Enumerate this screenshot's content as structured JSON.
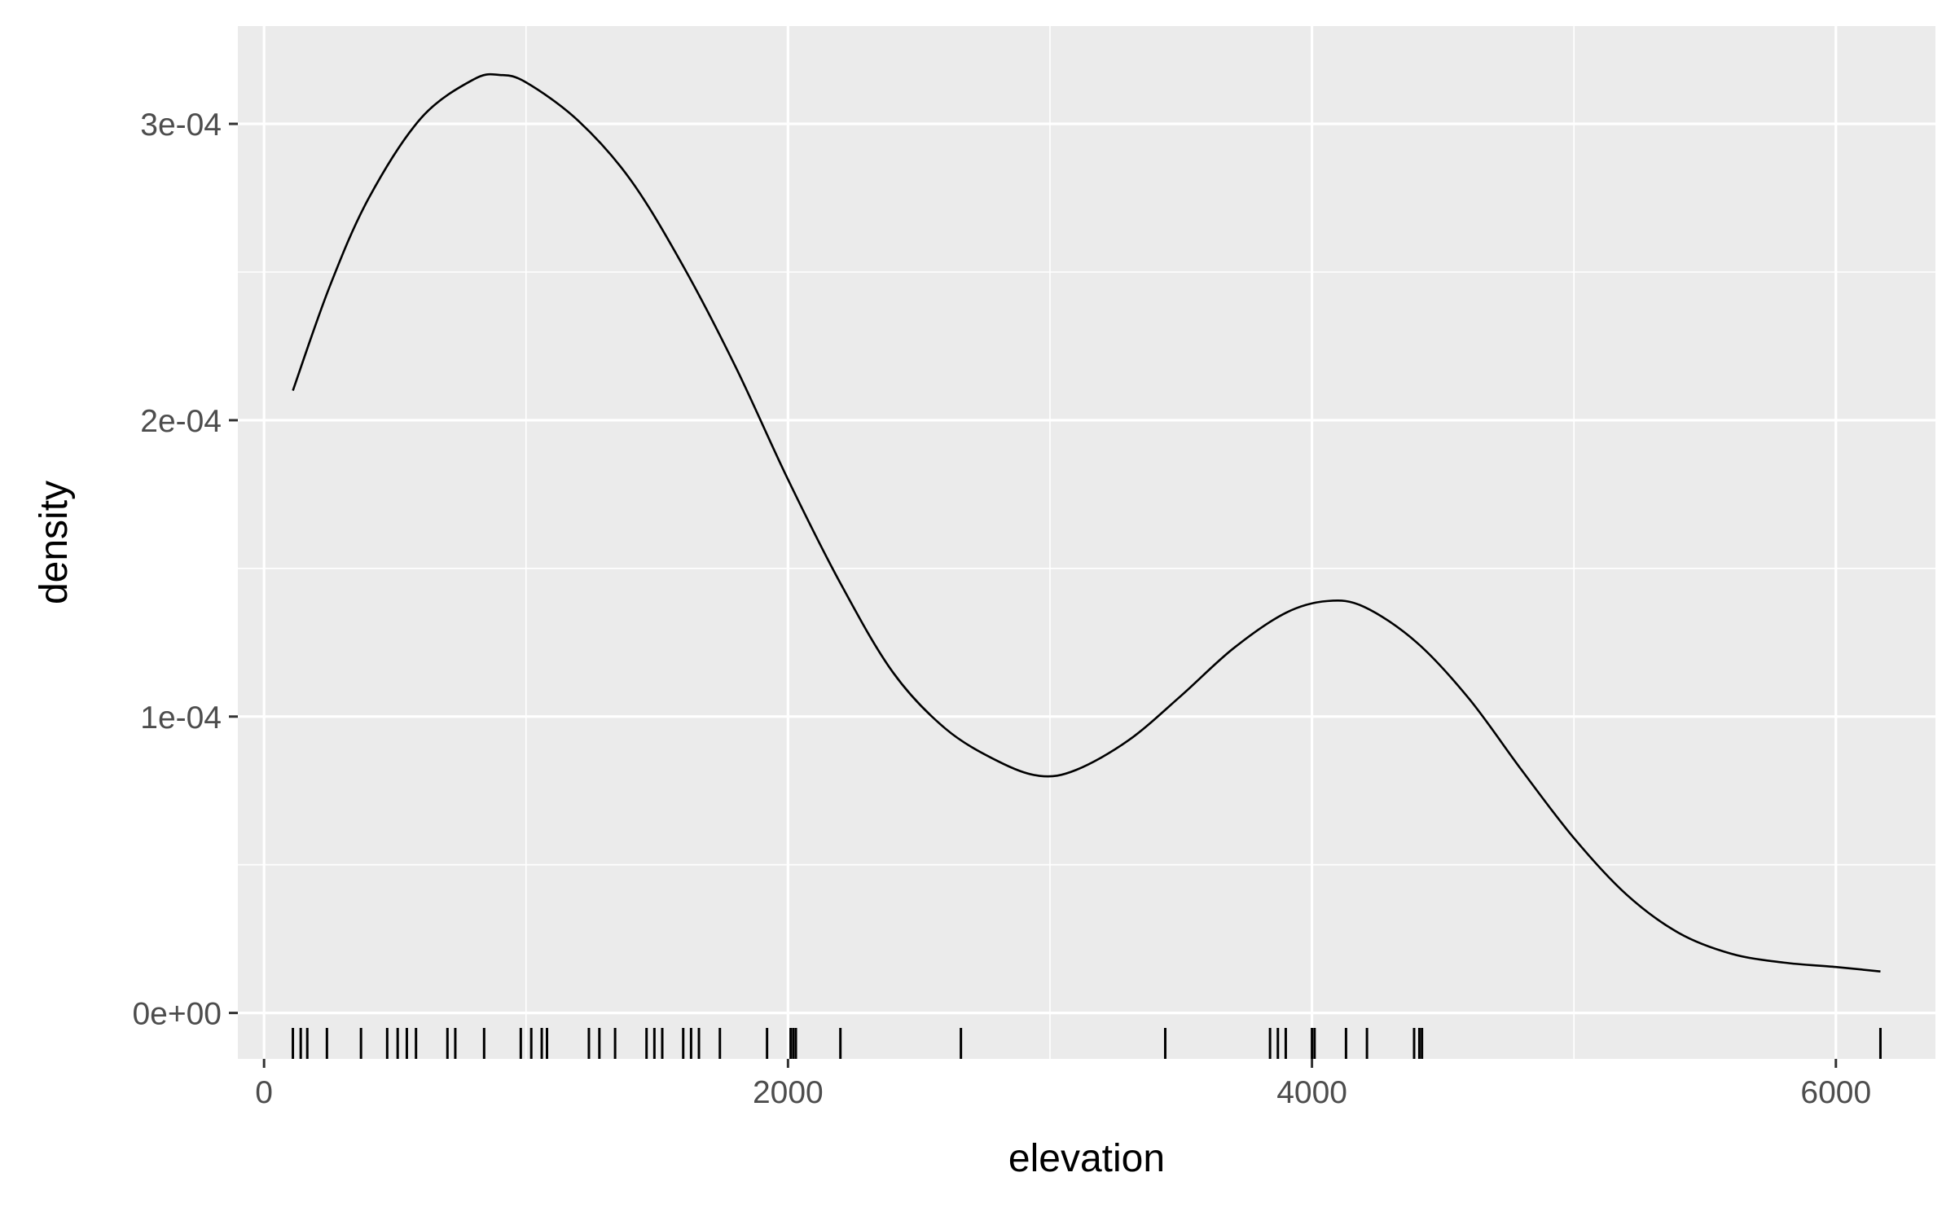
{
  "chart_data": {
    "type": "density",
    "xlabel": "elevation",
    "ylabel": "density",
    "xlim": [
      -100,
      6380
    ],
    "ylim": [
      -1.55e-05,
      0.000333
    ],
    "x_ticks": [
      0,
      2000,
      4000,
      6000
    ],
    "x_tick_labels": [
      "0",
      "2000",
      "4000",
      "6000"
    ],
    "y_ticks": [
      0,
      0.0001,
      0.0002,
      0.0003
    ],
    "y_tick_labels": [
      "0e+00",
      "1e-04",
      "2e-04",
      "3e-04"
    ],
    "grid": true,
    "panel_background": "#ebebeb",
    "grid_color": "#ffffff",
    "line_color": "#000000",
    "series": [
      {
        "x": [
          110,
          250,
          400,
          600,
          800,
          900,
          1000,
          1200,
          1400,
          1600,
          1800,
          2000,
          2200,
          2400,
          2600,
          2800,
          2960,
          3100,
          3300,
          3500,
          3700,
          3900,
          4060,
          4200,
          4400,
          4600,
          4800,
          5000,
          5200,
          5400,
          5600,
          5800,
          6000,
          6170
        ],
        "y": [
          0.00021,
          0.000245,
          0.000275,
          0.000302,
          0.000315,
          0.0003165,
          0.000314,
          0.000301,
          0.000281,
          0.000252,
          0.000218,
          0.00018,
          0.000145,
          0.000115,
          9.6e-05,
          8.5e-05,
          8e-05,
          8.2e-05,
          9.2e-05,
          0.000107,
          0.000123,
          0.000135,
          0.000139,
          0.000137,
          0.000125,
          0.000106,
          8.2e-05,
          5.9e-05,
          4e-05,
          2.7e-05,
          2e-05,
          1.7e-05,
          1.55e-05,
          1.4e-05
        ]
      }
    ],
    "rug": [
      110,
      140,
      165,
      240,
      370,
      470,
      510,
      545,
      580,
      700,
      730,
      840,
      980,
      1020,
      1060,
      1080,
      1240,
      1280,
      1340,
      1460,
      1490,
      1520,
      1600,
      1630,
      1660,
      1740,
      1920,
      2010,
      2020,
      2030,
      2200,
      2660,
      3440,
      3840,
      3870,
      3900,
      4000,
      4010,
      4130,
      4210,
      4390,
      4410,
      4420,
      6170
    ]
  }
}
